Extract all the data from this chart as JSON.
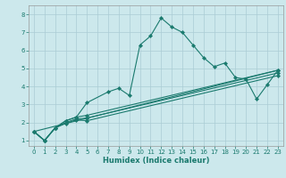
{
  "title": "",
  "xlabel": "Humidex (Indice chaleur)",
  "xlim": [
    -0.5,
    23.5
  ],
  "ylim": [
    0.7,
    8.5
  ],
  "xticks": [
    0,
    1,
    2,
    3,
    4,
    5,
    6,
    7,
    8,
    9,
    10,
    11,
    12,
    13,
    14,
    15,
    16,
    17,
    18,
    19,
    20,
    21,
    22,
    23
  ],
  "yticks": [
    1,
    2,
    3,
    4,
    5,
    6,
    7,
    8
  ],
  "bg_color": "#cce8ec",
  "line_color": "#1a7a6e",
  "grid_color": "#aaccd4",
  "peaked_x": [
    0,
    1,
    2,
    3,
    4,
    5,
    7,
    8,
    9,
    10,
    11,
    12,
    13,
    14,
    15,
    16,
    17,
    18,
    19,
    20,
    21,
    22,
    23
  ],
  "peaked_y": [
    1.5,
    1.0,
    1.7,
    2.1,
    2.3,
    3.1,
    3.7,
    3.9,
    3.5,
    6.3,
    6.8,
    7.8,
    7.3,
    7.0,
    6.3,
    5.6,
    5.1,
    5.3,
    4.5,
    4.4,
    3.3,
    4.1,
    4.9
  ],
  "line2_x": [
    0,
    1,
    2,
    3,
    4,
    5,
    23
  ],
  "line2_y": [
    1.5,
    1.0,
    1.7,
    2.1,
    2.3,
    2.4,
    4.9
  ],
  "line3_x": [
    0,
    1,
    2,
    3,
    4,
    5,
    23
  ],
  "line3_y": [
    1.5,
    1.0,
    1.7,
    2.0,
    2.2,
    2.25,
    4.75
  ],
  "line4_x": [
    0,
    1,
    2,
    3,
    4,
    5,
    23
  ],
  "line4_y": [
    1.5,
    1.0,
    1.7,
    1.95,
    2.15,
    2.1,
    4.6
  ],
  "line5_x": [
    0,
    23
  ],
  "line5_y": [
    1.5,
    4.9
  ]
}
